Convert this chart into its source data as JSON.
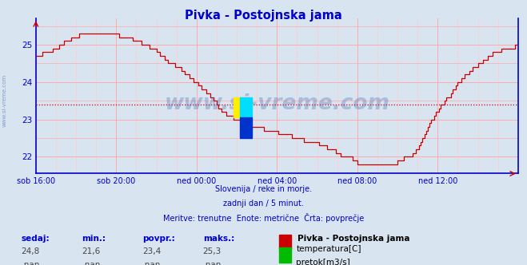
{
  "title": "Pivka - Postojnska jama",
  "bg_color": "#d8e4f0",
  "plot_bg_color": "#d8e4f0",
  "line_color": "#cc0000",
  "avg_line_color": "#cc0000",
  "avg_value": 23.4,
  "axis_color": "#0000cc",
  "grid_major_x_color": "#ffaaaa",
  "grid_minor_x_color": "#ffcccc",
  "grid_major_y_color": "#ffaaaa",
  "ylim_min": 21.55,
  "ylim_max": 25.7,
  "yticks": [
    22,
    23,
    24,
    25
  ],
  "xtick_labels": [
    "sob 16:00",
    "sob 20:00",
    "ned 00:00",
    "ned 04:00",
    "ned 08:00",
    "ned 12:00"
  ],
  "xtick_positions": [
    0,
    48,
    96,
    144,
    192,
    240
  ],
  "xlim_max": 288,
  "footer_lines": [
    "Slovenija / reke in morje.",
    "zadnji dan / 5 minut.",
    "Meritve: trenutne  Enote: metrične  Črta: povprečje"
  ],
  "sedaj": "24,8",
  "min_val": "21,6",
  "povpr": "23,4",
  "maks": "25,3",
  "station_name": "Pivka - Postojnska jama",
  "legend_temp_color": "#cc0000",
  "legend_flow_color": "#00bb00",
  "watermark": "www.si-vreme.com",
  "watermark_color": "#3355aa",
  "watermark_alpha": 0.28,
  "left_label": "www.si-vreme.com"
}
